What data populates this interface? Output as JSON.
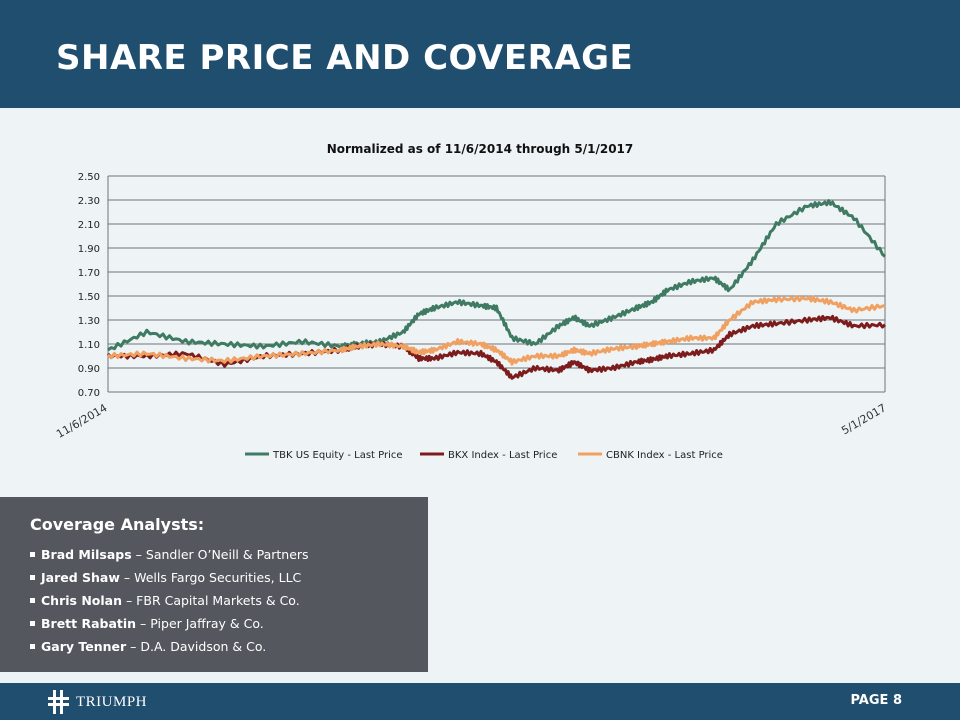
{
  "header": {
    "title": "SHARE PRICE AND COVERAGE"
  },
  "chart_data": {
    "type": "line",
    "title": "Normalized as of  11/6/2014 through 5/1/2017",
    "x_start_label": "11/6/2014",
    "x_end_label": "5/1/2017",
    "ylim": [
      0.7,
      2.5
    ],
    "yticks": [
      "2.50",
      "2.30",
      "2.10",
      "1.90",
      "1.70",
      "1.50",
      "1.30",
      "1.10",
      "0.90",
      "0.70"
    ],
    "grid": true,
    "legend_position": "bottom",
    "x": [
      0,
      0.05,
      0.1,
      0.15,
      0.2,
      0.25,
      0.3,
      0.32,
      0.35,
      0.38,
      0.4,
      0.42,
      0.45,
      0.48,
      0.5,
      0.52,
      0.55,
      0.58,
      0.6,
      0.62,
      0.65,
      0.68,
      0.7,
      0.72,
      0.75,
      0.78,
      0.8,
      0.83,
      0.86,
      0.9,
      0.93,
      0.96,
      1.0
    ],
    "series": [
      {
        "name": "TBK US Equity - Last Price",
        "color": "#3f7a62",
        "values": [
          1.05,
          1.2,
          1.12,
          1.1,
          1.08,
          1.12,
          1.08,
          1.1,
          1.12,
          1.2,
          1.35,
          1.4,
          1.45,
          1.42,
          1.4,
          1.15,
          1.1,
          1.25,
          1.32,
          1.25,
          1.32,
          1.4,
          1.45,
          1.55,
          1.62,
          1.65,
          1.55,
          1.8,
          2.1,
          2.25,
          2.28,
          2.15,
          1.83
        ]
      },
      {
        "name": "BKX Index - Last Price",
        "color": "#7c1c1c",
        "values": [
          1.0,
          1.0,
          1.02,
          0.93,
          1.0,
          1.02,
          1.05,
          1.08,
          1.1,
          1.08,
          0.98,
          0.98,
          1.03,
          1.02,
          0.95,
          0.82,
          0.9,
          0.88,
          0.95,
          0.88,
          0.9,
          0.95,
          0.97,
          1.0,
          1.02,
          1.05,
          1.18,
          1.25,
          1.27,
          1.3,
          1.32,
          1.25,
          1.26
        ]
      },
      {
        "name": "CBNK Index - Last Price",
        "color": "#f0a060",
        "values": [
          1.0,
          1.02,
          0.98,
          0.96,
          1.0,
          1.02,
          1.05,
          1.08,
          1.1,
          1.08,
          1.03,
          1.05,
          1.12,
          1.1,
          1.05,
          0.95,
          1.0,
          1.0,
          1.05,
          1.02,
          1.06,
          1.08,
          1.1,
          1.12,
          1.15,
          1.15,
          1.3,
          1.45,
          1.47,
          1.48,
          1.45,
          1.38,
          1.42
        ]
      }
    ]
  },
  "analysts": {
    "heading": "Coverage Analysts:",
    "items": [
      {
        "name": "Brad Milsaps",
        "firm": " – Sandler O’Neill & Partners"
      },
      {
        "name": "Jared Shaw",
        "firm": " – Wells Fargo Securities, LLC"
      },
      {
        "name": "Chris Nolan",
        "firm": " – FBR Capital Markets & Co."
      },
      {
        "name": "Brett Rabatin",
        "firm": " – Piper Jaffray & Co."
      },
      {
        "name": "Gary Tenner",
        "firm": " – D.A. Davidson & Co."
      }
    ]
  },
  "footer": {
    "logo_text": "TRIUMPH",
    "logo_icon": "triumph-cross-icon",
    "page_label": "PAGE 8"
  }
}
